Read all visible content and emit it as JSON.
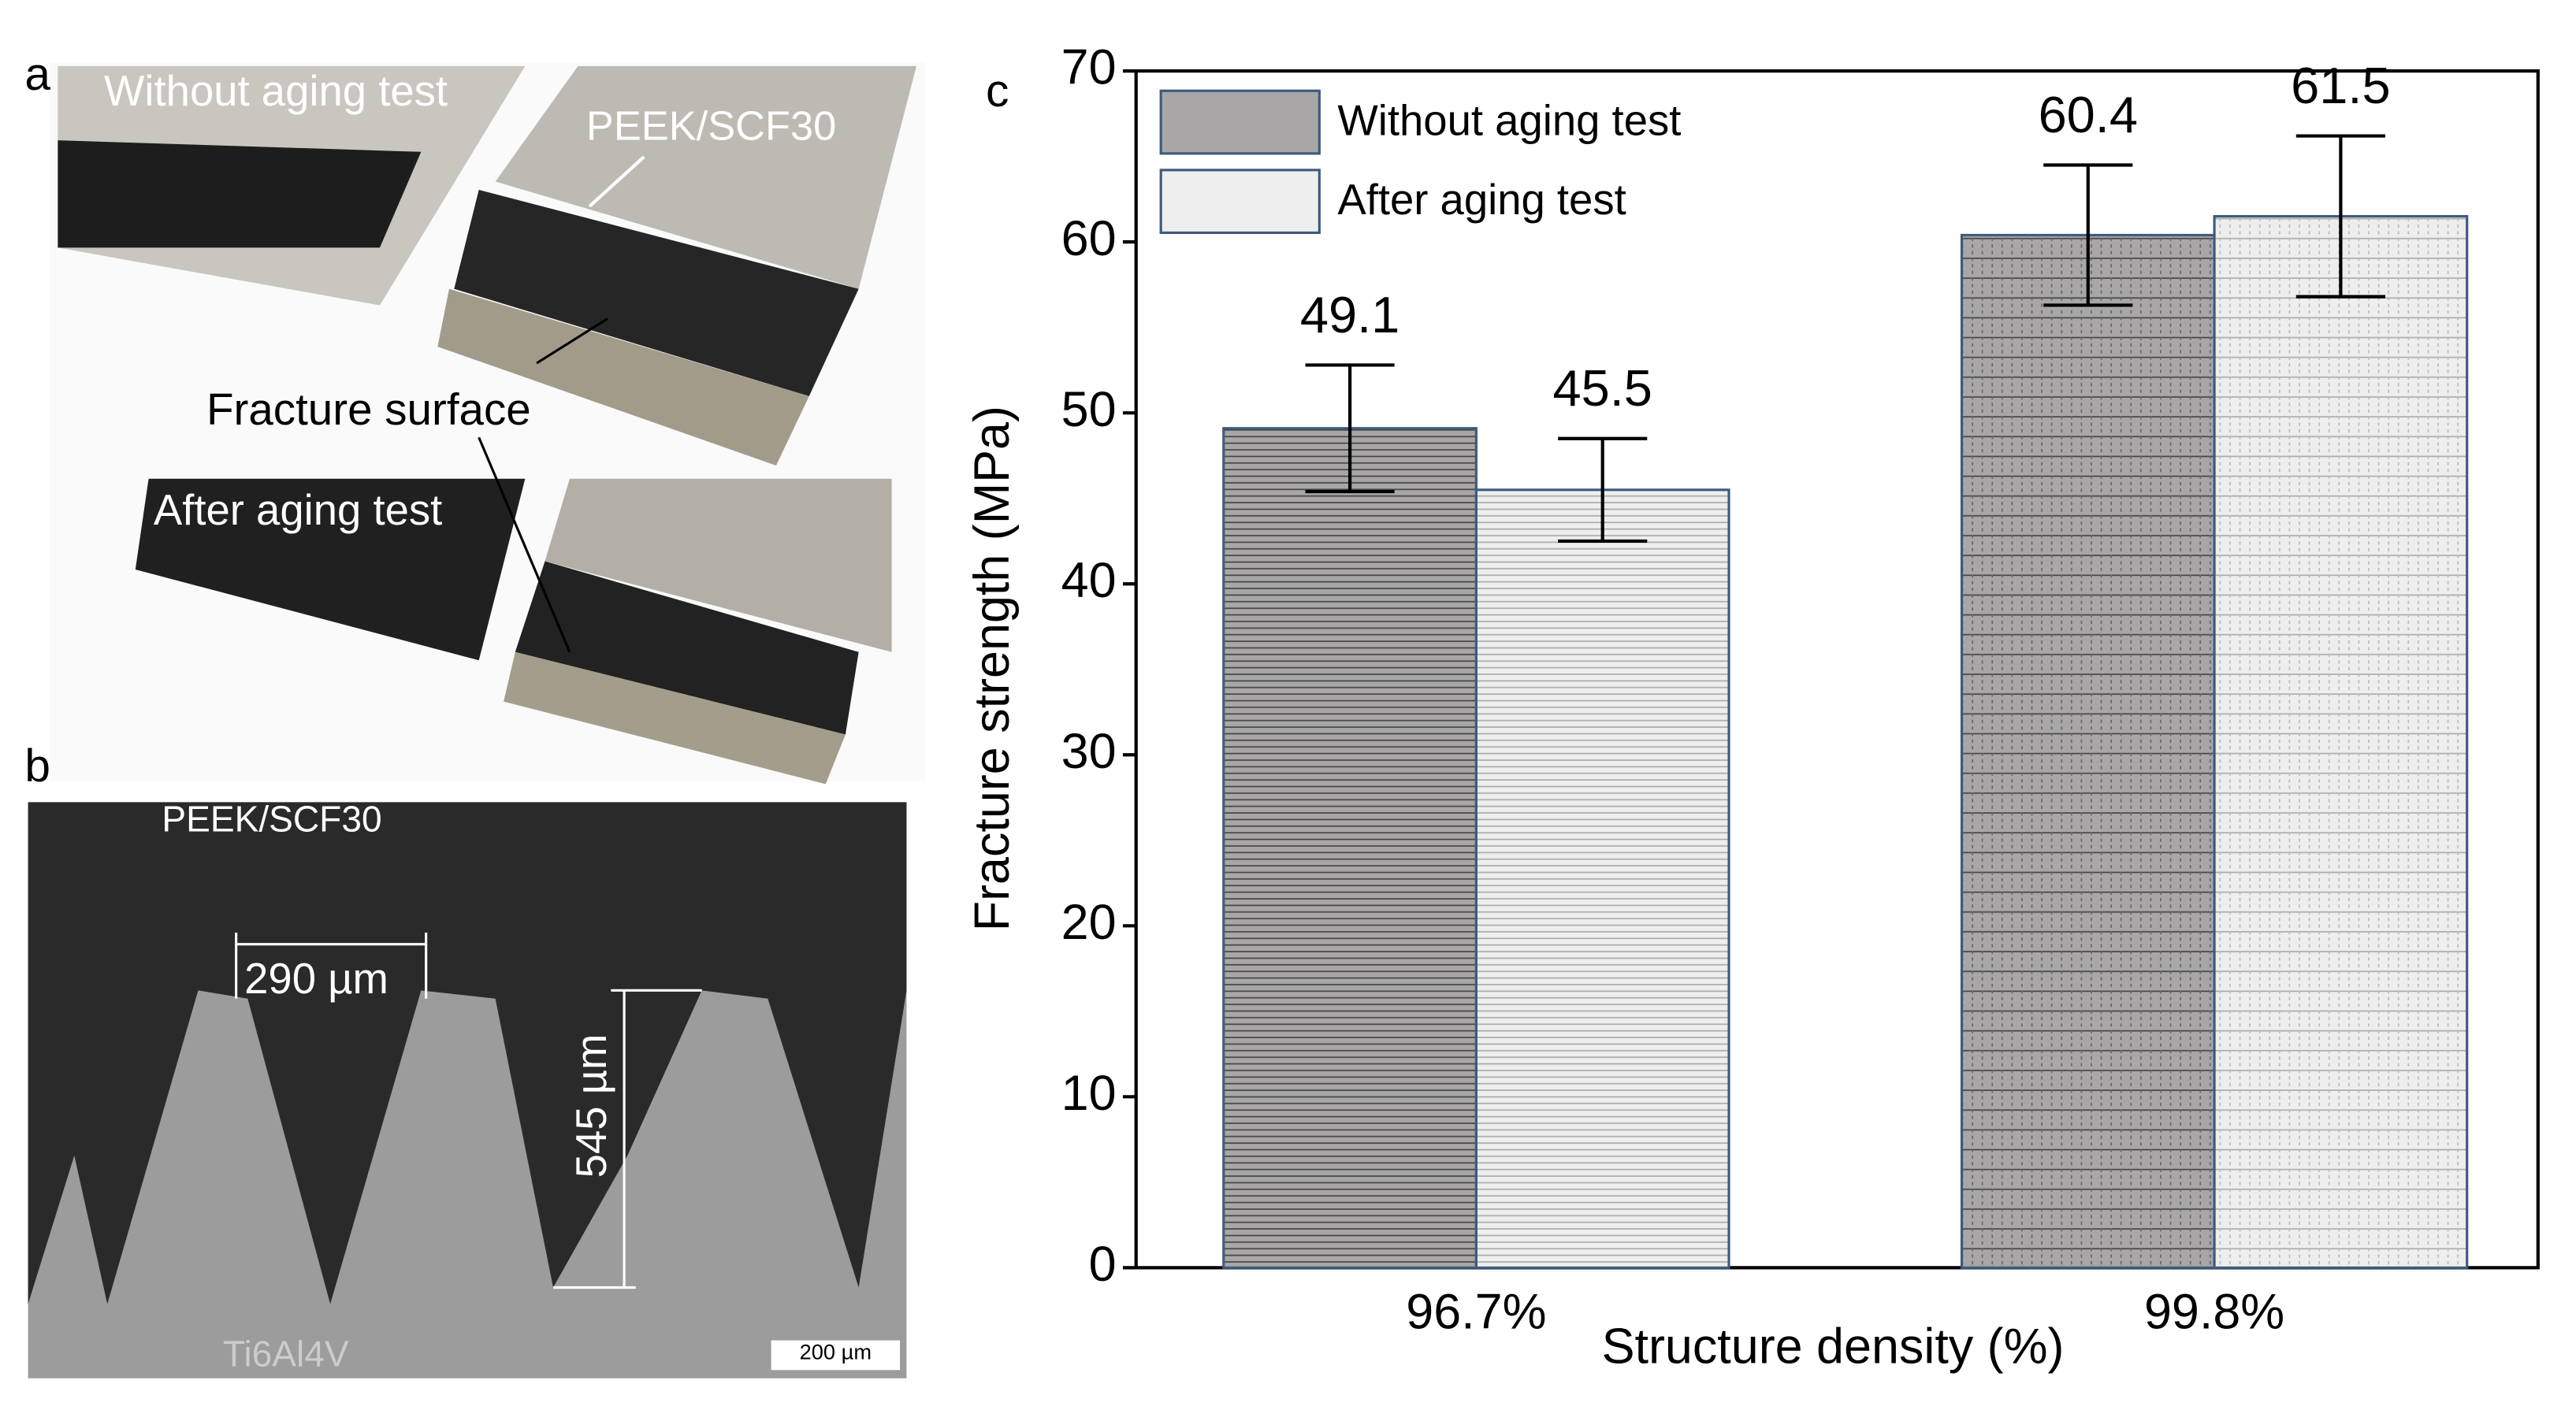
{
  "panel_a": {
    "label": "a",
    "texts": [
      "Without aging test",
      "PEEK/SCF30",
      "Fracture surface",
      "After aging test"
    ]
  },
  "panel_b": {
    "label": "b",
    "texts": [
      "PEEK/SCF30",
      "290 µm",
      "545 µm",
      "Ti6Al4V",
      "200 µm"
    ]
  },
  "chart_data": {
    "type": "bar",
    "panel_label": "c",
    "x_label": "Structure density (%)",
    "y_label": "Fracture strength (MPa)",
    "categories": [
      "96.7%",
      "99.8%"
    ],
    "series": [
      {
        "name": "Without aging test",
        "color": "#a8a6a6",
        "values": [
          49.1,
          60.4
        ],
        "errors": [
          3.7,
          4.1
        ]
      },
      {
        "name": "After aging test",
        "color": "#eeeeee",
        "values": [
          45.5,
          61.5
        ],
        "errors": [
          3.0,
          4.7
        ]
      }
    ],
    "ylim": [
      0,
      70
    ],
    "yticks": [
      0,
      10,
      20,
      30,
      40,
      50,
      60,
      70
    ],
    "legend": "upper left"
  }
}
